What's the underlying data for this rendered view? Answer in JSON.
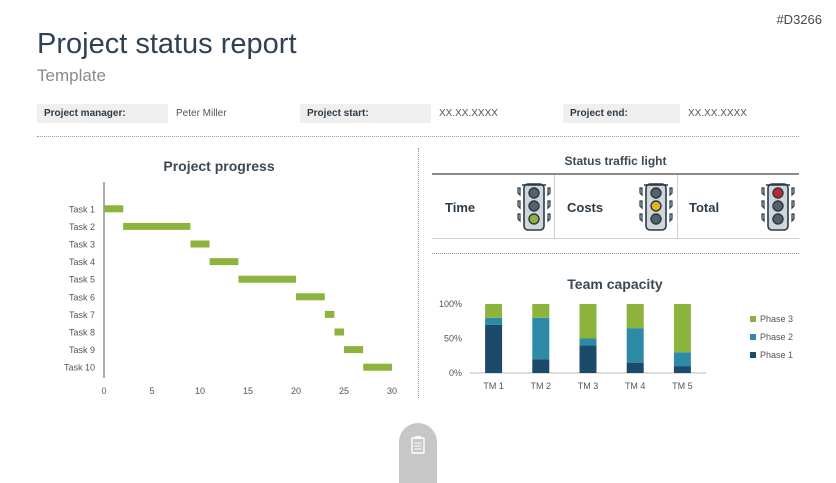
{
  "slide_id": "#D3266",
  "title": "Project status report",
  "subtitle": "Template",
  "info": {
    "manager_label": "Project manager:",
    "manager_value": "Peter Miller",
    "start_label": "Project start:",
    "start_value": "XX.XX.XXXX",
    "end_label": "Project end:",
    "end_value": "XX.XX.XXXX"
  },
  "status": {
    "title": "Status traffic light",
    "time_label": "Time",
    "costs_label": "Costs",
    "total_label": "Total",
    "lights": {
      "time": "green",
      "costs": "yellow",
      "total": "red"
    },
    "colors": {
      "red": "#c0272d",
      "yellow": "#e3b21b",
      "green": "#8cb43c",
      "off": "#56616c"
    }
  },
  "chart_data": [
    {
      "type": "bar",
      "title": "Project progress",
      "categories": [
        "Task 1",
        "Task 2",
        "Task 3",
        "Task 4",
        "Task 5",
        "Task 6",
        "Task 7",
        "Task 8",
        "Task 9",
        "Task 10"
      ],
      "series": [
        {
          "start": [
            0,
            2,
            9,
            11,
            14,
            20,
            23,
            24,
            25,
            27
          ],
          "end": [
            2,
            9,
            11,
            14,
            20,
            23,
            24,
            25,
            27,
            30
          ]
        }
      ],
      "xlim": [
        0,
        30
      ],
      "xticks": [
        0,
        5,
        10,
        15,
        20,
        25,
        30
      ],
      "color": "#8cb43c"
    },
    {
      "type": "bar",
      "title": "Team capacity",
      "categories": [
        "TM 1",
        "TM 2",
        "TM 3",
        "TM 4",
        "TM 5"
      ],
      "series": [
        {
          "name": "Phase 1",
          "values": [
            70,
            20,
            40,
            15,
            10
          ],
          "color": "#1b4a6b"
        },
        {
          "name": "Phase 2",
          "values": [
            10,
            60,
            10,
            50,
            20
          ],
          "color": "#2e8ba8"
        },
        {
          "name": "Phase 3",
          "values": [
            20,
            20,
            50,
            35,
            70
          ],
          "color": "#8cb43c"
        }
      ],
      "yticks": [
        "100%",
        "50%",
        "0%"
      ],
      "ylim": [
        0,
        100
      ],
      "legend": "right"
    }
  ]
}
